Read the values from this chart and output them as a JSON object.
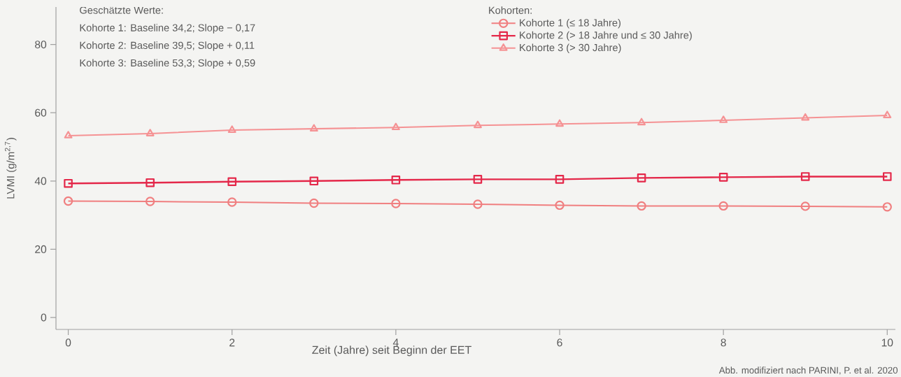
{
  "chart_data": {
    "type": "line",
    "xlabel": "Zeit (Jahre) seit Beginn der EET",
    "ylabel": "LVMI (g/m$^{2,7}$)",
    "legend_title": "Kohorten:",
    "legend": "top right",
    "x": [
      0,
      1,
      2,
      3,
      4,
      5,
      6,
      7,
      8,
      9,
      10
    ],
    "series": [
      {
        "name": "Kohorte 1 (≤ 18 Jahre)",
        "color": "#f07f80",
        "marker": "circle",
        "values": [
          34.1,
          34.0,
          33.8,
          33.5,
          33.4,
          33.2,
          32.9,
          32.7,
          32.7,
          32.6,
          32.4
        ]
      },
      {
        "name": "Kohorte 2 (> 18 Jahre und ≤ 30 Jahre)",
        "color": "#e4284a",
        "marker": "square",
        "values": [
          39.3,
          39.5,
          39.8,
          40.0,
          40.3,
          40.5,
          40.5,
          40.9,
          41.1,
          41.3,
          41.3
        ]
      },
      {
        "name": "Kohorte 3 (> 30 Jahre)",
        "color": "#f59294",
        "marker": "triangle",
        "values": [
          53.3,
          53.9,
          54.9,
          55.3,
          55.7,
          56.3,
          56.7,
          57.1,
          57.8,
          58.5,
          59.2
        ]
      }
    ],
    "xlim": [
      -0.15,
      10.1
    ],
    "ylim": [
      -3.5,
      91
    ],
    "xticks": [
      0,
      2,
      4,
      6,
      8,
      10
    ],
    "yticks": [
      0,
      20,
      40,
      60,
      80
    ],
    "grid": false,
    "line_style": "solid",
    "annotations": [
      "Geschätzte Werte:",
      "Kohorte 1: Baseline 34,2; Slope − 0,17",
      "Kohorte 2: Baseline 39,5; Slope + 0,11",
      "Kohorte 3: Baseline 53,3; Slope + 0,59",
      "Abb. modifiziert nach PARINI, P. et al. 2020"
    ]
  }
}
